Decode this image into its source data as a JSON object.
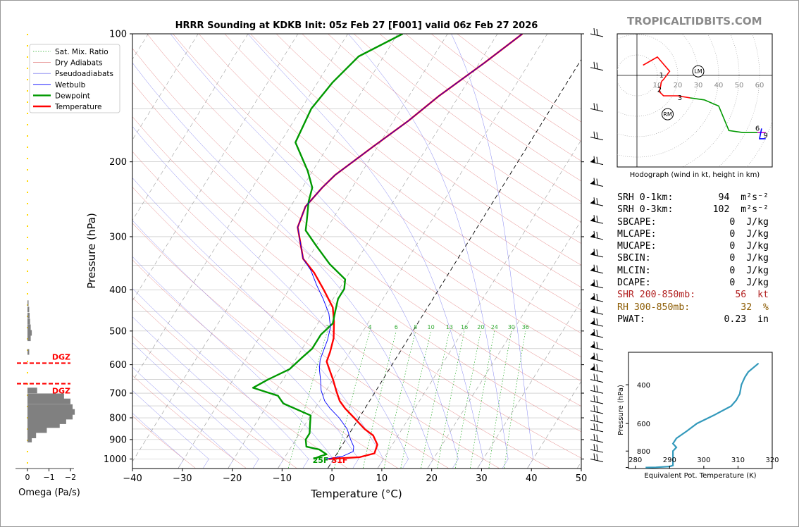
{
  "site": "TROPICALTIDBITS.COM",
  "chart_data": [
    {
      "type": "line",
      "title": "HRRR Sounding at KDKB Init: 05z Feb 27 [F001] valid 06z Feb 27 2026",
      "xlabel": "Temperature (°C)",
      "ylabel": "Pressure (hPa)",
      "x_ticks": [
        "−40",
        "−30",
        "−20",
        "−10",
        "0",
        "10",
        "20",
        "30",
        "40",
        "50"
      ],
      "y_ticks": [
        "100",
        "200",
        "300",
        "400",
        "500",
        "600",
        "700",
        "800",
        "900",
        "1000"
      ],
      "xlim": [
        -40,
        50
      ],
      "ylim": [
        1050,
        100
      ],
      "y_scale": "log",
      "legend": {
        "placement": "top-left",
        "entries": [
          "Sat. Mix. Ratio",
          "Dry Adiabats",
          "Pseudoadiabats",
          "Wetbulb",
          "Dewpoint",
          "Temperature"
        ]
      },
      "mixing_ratio_labels": [
        "2",
        "4",
        "6",
        "8",
        "10",
        "13",
        "16",
        "20",
        "24",
        "30",
        "36"
      ],
      "surface_labels": {
        "dewpoint": "25F",
        "temperature": "31F"
      },
      "series": [
        {
          "name": "Temperature",
          "color": "#ff0000",
          "points": [
            [
              -1,
              1000
            ],
            [
              5,
              990
            ],
            [
              7.5,
              970
            ],
            [
              7,
              925
            ],
            [
              5,
              880
            ],
            [
              2.5,
              850
            ],
            [
              -1,
              800
            ],
            [
              -4,
              760
            ],
            [
              -6,
              730
            ],
            [
              -8,
              690
            ],
            [
              -10,
              650
            ],
            [
              -12,
              615
            ],
            [
              -13.5,
              590
            ],
            [
              -14,
              560
            ],
            [
              -15,
              520
            ],
            [
              -17,
              475
            ],
            [
              -19,
              440
            ],
            [
              -23,
              400
            ],
            [
              -27,
              365
            ],
            [
              -31,
              338
            ],
            [
              -34,
              305
            ],
            [
              -36,
              285
            ],
            [
              -37,
              255
            ],
            [
              -36,
              230
            ],
            [
              -35,
              215
            ],
            [
              -31,
              185
            ],
            [
              -27,
              160
            ],
            [
              -24,
              140
            ],
            [
              -19,
              117
            ],
            [
              -15,
              100
            ]
          ]
        },
        {
          "name": "Dewpoint",
          "color": "#009900",
          "points": [
            [
              -4,
              1000
            ],
            [
              -3,
              985
            ],
            [
              -2,
              975
            ],
            [
              -4,
              950
            ],
            [
              -7,
              935
            ],
            [
              -8,
              900
            ],
            [
              -8,
              870
            ],
            [
              -9,
              830
            ],
            [
              -10,
              790
            ],
            [
              -17,
              740
            ],
            [
              -19,
              710
            ],
            [
              -25,
              680
            ],
            [
              -23,
              650
            ],
            [
              -20,
              615
            ],
            [
              -19,
              580
            ],
            [
              -18,
              550
            ],
            [
              -18,
              510
            ],
            [
              -17,
              480
            ],
            [
              -18,
              450
            ],
            [
              -19,
              420
            ],
            [
              -19,
              398
            ],
            [
              -20,
              378
            ],
            [
              -25,
              348
            ],
            [
              -30,
              315
            ],
            [
              -34,
              290
            ],
            [
              -35,
              275
            ],
            [
              -37,
              248
            ],
            [
              -38,
              230
            ],
            [
              -41,
              210
            ],
            [
              -47,
              180
            ],
            [
              -48,
              150
            ],
            [
              -47,
              130
            ],
            [
              -45,
              113
            ],
            [
              -39,
              100
            ]
          ]
        },
        {
          "name": "Wetbulb",
          "color": "#0000ff",
          "points": [
            [
              -1.5,
              1000
            ],
            [
              1.5,
              985
            ],
            [
              3,
              960
            ],
            [
              2.5,
              935
            ],
            [
              1,
              900
            ],
            [
              -1,
              850
            ],
            [
              -4,
              800
            ],
            [
              -7,
              760
            ],
            [
              -9,
              730
            ],
            [
              -11,
              690
            ],
            [
              -12.5,
              650
            ],
            [
              -14,
              615
            ],
            [
              -15,
              585
            ],
            [
              -15.5,
              555
            ],
            [
              -16,
              525
            ],
            [
              -17,
              490
            ],
            [
              -19,
              455
            ],
            [
              -22,
              420
            ],
            [
              -25,
              390
            ],
            [
              -28,
              360
            ],
            [
              -31,
              338
            ],
            [
              -34,
              305
            ],
            [
              -36,
              285
            ],
            [
              -37,
              255
            ],
            [
              -36,
              230
            ],
            [
              -35,
              215
            ],
            [
              -31,
              185
            ],
            [
              -27,
              160
            ],
            [
              -24,
              140
            ],
            [
              -19,
              117
            ],
            [
              -15,
              100
            ]
          ]
        }
      ]
    },
    {
      "type": "bar",
      "xlabel": "Omega (Pa/s)",
      "x_ticks": [
        "0",
        "−1",
        "−2"
      ],
      "xlim": [
        0.5,
        -2.2
      ],
      "dgz_label": "DGZ",
      "dgz_levels": [
        595,
        665
      ],
      "series": [
        {
          "name": "Omega",
          "points": [
            [
              -0.05,
              430
            ],
            [
              -0.08,
              445
            ],
            [
              -0.1,
              460
            ],
            [
              -0.12,
              475
            ],
            [
              -0.15,
              490
            ],
            [
              -0.2,
              505
            ],
            [
              -0.15,
              520
            ],
            [
              -0.08,
              560
            ],
            [
              -0.45,
              690
            ],
            [
              -1.7,
              712
            ],
            [
              -2.0,
              732
            ],
            [
              -2.1,
              755
            ],
            [
              -2.2,
              775
            ],
            [
              -2.1,
              795
            ],
            [
              -1.8,
              815
            ],
            [
              -1.5,
              832
            ],
            [
              -0.9,
              855
            ],
            [
              -0.4,
              880
            ],
            [
              -0.2,
              900
            ]
          ]
        }
      ]
    },
    {
      "type": "line",
      "xlabel": "Hodograph (wind in kt, height in km)",
      "ring_labels": [
        "10",
        "20",
        "30",
        "40",
        "50",
        "60"
      ],
      "height_labels": [
        "1",
        "2",
        "3",
        "6",
        "9"
      ],
      "storm_markers": [
        "LM",
        "RM"
      ],
      "series": [
        {
          "name": "0-1 km",
          "color": "#ff0000",
          "points": [
            [
              3,
              5
            ],
            [
              10,
              9
            ],
            [
              16,
              2
            ],
            [
              13,
              -2
            ],
            [
              12,
              -3
            ]
          ]
        },
        {
          "name": "1-3 km",
          "color": "#ff0000",
          "points": [
            [
              12,
              -3
            ],
            [
              11,
              -8
            ],
            [
              13,
              -10
            ],
            [
              20,
              -10
            ],
            [
              26,
              -11
            ]
          ]
        },
        {
          "name": "3-6 km",
          "color": "#009900",
          "points": [
            [
              26,
              -11
            ],
            [
              33,
              -12
            ],
            [
              40,
              -15
            ],
            [
              45,
              -27
            ],
            [
              52,
              -28
            ],
            [
              59,
              -28
            ]
          ]
        },
        {
          "name": "6-9 km",
          "color": "#cc00cc",
          "points": [
            [
              59,
              -28
            ],
            [
              63,
              -28
            ]
          ]
        }
      ]
    },
    {
      "type": "line",
      "xlabel": "Equivalent Pot. Temperature (K)",
      "ylabel": "Pressure (hPa)",
      "x_ticks": [
        "280",
        "290",
        "300",
        "310",
        "320"
      ],
      "y_ticks": [
        "400",
        "600",
        "800"
      ],
      "xlim": [
        278,
        320
      ],
      "ylim": [
        960,
        285
      ],
      "series": [
        {
          "name": "Theta-e",
          "color": "#3399bb",
          "points": [
            [
              283,
              950
            ],
            [
              286,
              948
            ],
            [
              290,
              940
            ],
            [
              291,
              930
            ],
            [
              291,
              900
            ],
            [
              291,
              850
            ],
            [
              291,
              800
            ],
            [
              292,
              770
            ],
            [
              291,
              740
            ],
            [
              292,
              700
            ],
            [
              295,
              650
            ],
            [
              298,
              600
            ],
            [
              303,
              550
            ],
            [
              308,
              500
            ],
            [
              309.5,
              470
            ],
            [
              310.5,
              440
            ],
            [
              311,
              400
            ],
            [
              312,
              370
            ],
            [
              313,
              350
            ],
            [
              316,
              320
            ]
          ]
        }
      ]
    }
  ],
  "indices": [
    {
      "label": "SRH 0-1km:",
      "value": "94",
      "unit": "m²s⁻²",
      "color": "#000000"
    },
    {
      "label": "SRH 0-3km:",
      "value": "102",
      "unit": "m²s⁻²",
      "color": "#000000"
    },
    {
      "label": "SBCAPE:",
      "value": "0",
      "unit": "J/kg",
      "color": "#000000"
    },
    {
      "label": "MLCAPE:",
      "value": "0",
      "unit": "J/kg",
      "color": "#000000"
    },
    {
      "label": "MUCAPE:",
      "value": "0",
      "unit": "J/kg",
      "color": "#000000"
    },
    {
      "label": "SBCIN:",
      "value": "0",
      "unit": "J/kg",
      "color": "#000000"
    },
    {
      "label": "MLCIN:",
      "value": "0",
      "unit": "J/kg",
      "color": "#000000"
    },
    {
      "label": "DCAPE:",
      "value": "0",
      "unit": "J/kg",
      "color": "#000000"
    },
    {
      "label": "SHR 200-850mb:",
      "value": "56",
      "unit": "kt",
      "color": "#b22222"
    },
    {
      "label": "RH 300-850mb:",
      "value": "32",
      "unit": "%",
      "color": "#8b5a00"
    },
    {
      "label": "PWAT:",
      "value": "0.23",
      "unit": "in",
      "color": "#000000"
    }
  ]
}
